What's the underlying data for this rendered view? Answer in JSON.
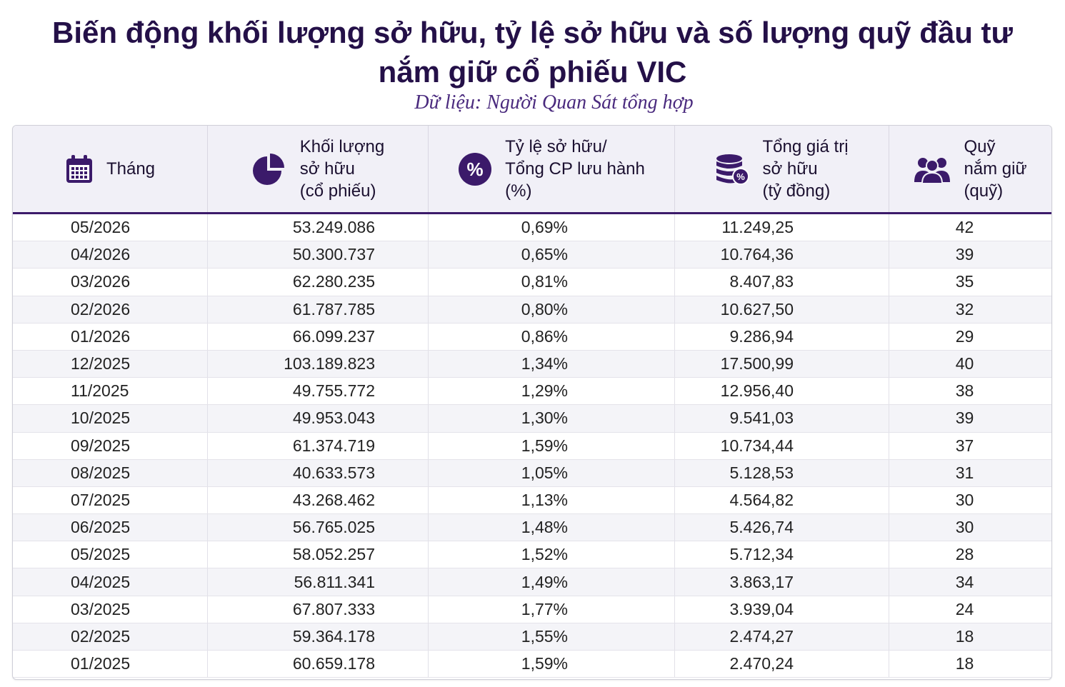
{
  "title": {
    "line1": "Biến động khối lượng sở hữu, tỷ lệ sở hữu và số lượng quỹ đầu tư",
    "line2": "nắm giữ cổ phiếu VIC"
  },
  "subtitle": "Dữ liệu: Người Quan Sát tổng hợp",
  "colors": {
    "accent": "#3b1a6a",
    "header_bg": "#f1f0f7",
    "title": "#241048"
  },
  "columns": [
    {
      "label": "Tháng",
      "icon": "calendar-icon"
    },
    {
      "label": "Khối lượng\nsở hữu\n(cổ phiếu)",
      "icon": "pie-chart-icon"
    },
    {
      "label": "Tỷ lệ sở hữu/\nTổng CP lưu hành\n(%)",
      "icon": "percent-icon"
    },
    {
      "label": "Tổng giá trị\nsở hữu\n(tỷ đồng)",
      "icon": "coins-percent-icon"
    },
    {
      "label": "Quỹ\nnắm giữ\n(quỹ)",
      "icon": "users-icon"
    }
  ],
  "chart_data": {
    "type": "table",
    "title": "Biến động khối lượng sở hữu, tỷ lệ sở hữu và số lượng quỹ đầu tư nắm giữ cổ phiếu VIC",
    "subtitle": "Dữ liệu: Người Quan Sát tổng hợp",
    "columns": [
      "Tháng",
      "Khối lượng sở hữu (cổ phiếu)",
      "Tỷ lệ sở hữu/ Tổng CP lưu hành (%)",
      "Tổng giá trị sở hữu (tỷ đồng)",
      "Quỹ nắm giữ (quỹ)"
    ],
    "rows": [
      [
        "05/2026",
        "53.249.086",
        "0,69%",
        "11.249,25",
        "42"
      ],
      [
        "04/2026",
        "50.300.737",
        "0,65%",
        "10.764,36",
        "39"
      ],
      [
        "03/2026",
        "62.280.235",
        "0,81%",
        "8.407,83",
        "35"
      ],
      [
        "02/2026",
        "61.787.785",
        "0,80%",
        "10.627,50",
        "32"
      ],
      [
        "01/2026",
        "66.099.237",
        "0,86%",
        "9.286,94",
        "29"
      ],
      [
        "12/2025",
        "103.189.823",
        "1,34%",
        "17.500,99",
        "40"
      ],
      [
        "11/2025",
        "49.755.772",
        "1,29%",
        "12.956,40",
        "38"
      ],
      [
        "10/2025",
        "49.953.043",
        "1,30%",
        "9.541,03",
        "39"
      ],
      [
        "09/2025",
        "61.374.719",
        "1,59%",
        "10.734,44",
        "37"
      ],
      [
        "08/2025",
        "40.633.573",
        "1,05%",
        "5.128,53",
        "31"
      ],
      [
        "07/2025",
        "43.268.462",
        "1,13%",
        "4.564,82",
        "30"
      ],
      [
        "06/2025",
        "56.765.025",
        "1,48%",
        "5.426,74",
        "30"
      ],
      [
        "05/2025",
        "58.052.257",
        "1,52%",
        "5.712,34",
        "28"
      ],
      [
        "04/2025",
        "56.811.341",
        "1,49%",
        "3.863,17",
        "34"
      ],
      [
        "03/2025",
        "67.807.333",
        "1,77%",
        "3.939,04",
        "24"
      ],
      [
        "02/2025",
        "59.364.178",
        "1,55%",
        "2.474,27",
        "18"
      ],
      [
        "01/2025",
        "60.659.178",
        "1,59%",
        "2.470,24",
        "18"
      ]
    ]
  }
}
